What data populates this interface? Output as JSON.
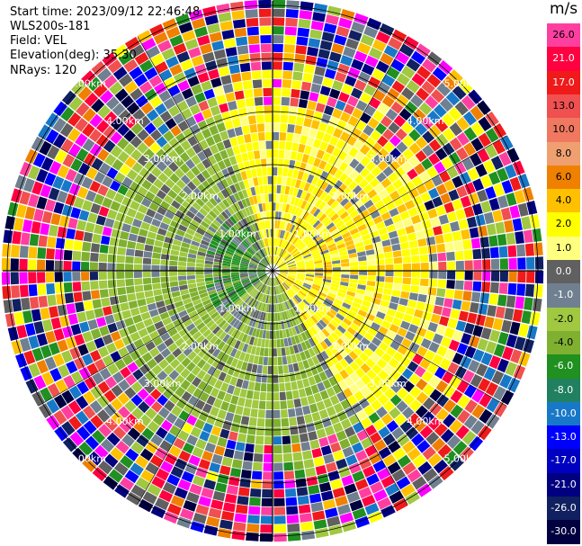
{
  "header": {
    "start_time": "Start time: 2023/09/12 22:46:48",
    "instrument": "WLS200s-181",
    "field": "Field: VEL",
    "elevation": "Elevation(deg): 35.30",
    "nrays": "NRays: 120"
  },
  "range_rings": {
    "labels": [
      "1.00km",
      "2.00km",
      "3.00km",
      "4.00km",
      "5.00km"
    ]
  },
  "colorbar": {
    "unit": "m/s",
    "ticks": [
      "26.0",
      "21.0",
      "17.0",
      "13.0",
      "10.0",
      "8.0",
      "6.0",
      "4.0",
      "2.0",
      "1.0",
      "0.0",
      "-1.0",
      "-2.0",
      "-4.0",
      "-6.0",
      "-8.0",
      "-10.0",
      "-13.0",
      "-17.0",
      "-21.0",
      "-26.0",
      "-30.0"
    ],
    "colors": [
      "#ff3fa0",
      "#ff0040",
      "#f01a1a",
      "#f05050",
      "#f07860",
      "#f0a070",
      "#f08000",
      "#ffc000",
      "#ffff00",
      "#ffff80",
      "#606060",
      "#708090",
      "#a0c840",
      "#80b030",
      "#209020",
      "#208060",
      "#1878c8",
      "#0000ff",
      "#0000c0",
      "#000080",
      "#102060",
      "#000040"
    ]
  }
}
